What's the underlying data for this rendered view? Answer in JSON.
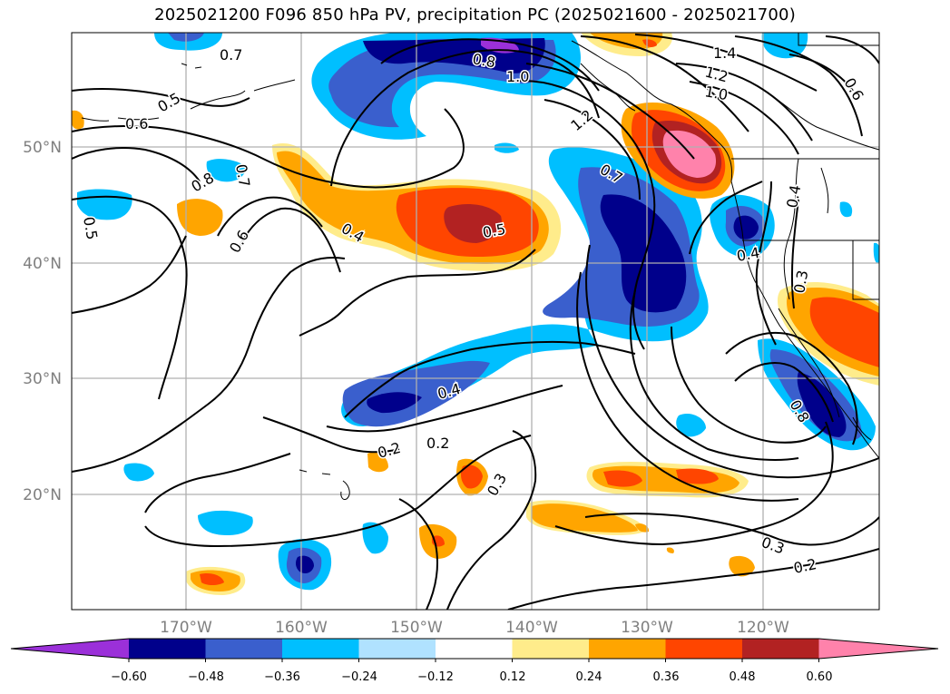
{
  "title": "2025021200 F096 850 hPa PV, precipitation PC (2025021600 - 2025021700)",
  "lat_labels": [
    "50°N",
    "40°N",
    "30°N",
    "20°N"
  ],
  "lon_labels": [
    "170°W",
    "160°W",
    "150°W",
    "140°W",
    "130°W",
    "120°W"
  ],
  "colorbar": {
    "ticks": [
      "−0.60",
      "−0.48",
      "−0.36",
      "−0.24",
      "−0.12",
      "0.12",
      "0.24",
      "0.36",
      "0.48",
      "0.60"
    ],
    "colors": [
      "#9b30d9",
      "#00008b",
      "#3a5fcd",
      "#00bfff",
      "#b0e2ff",
      "#ffffff",
      "#ffec8b",
      "#ffa500",
      "#ff4500",
      "#b22222",
      "#ff82ab"
    ]
  },
  "pv_contour_labels": [
    "0.7",
    "0.5",
    "0.6",
    "0.8",
    "0.7",
    "0.6",
    "0.5",
    "0.4",
    "0.5",
    "0.4",
    "0.2",
    "0.2",
    "0.3",
    "0.3",
    "0.2",
    "0.7",
    "0.8",
    "1.0",
    "1.2",
    "1.4",
    "1.2",
    "1.0",
    "0.6",
    "0.4",
    "0.4",
    "0.3",
    "0.8"
  ]
}
